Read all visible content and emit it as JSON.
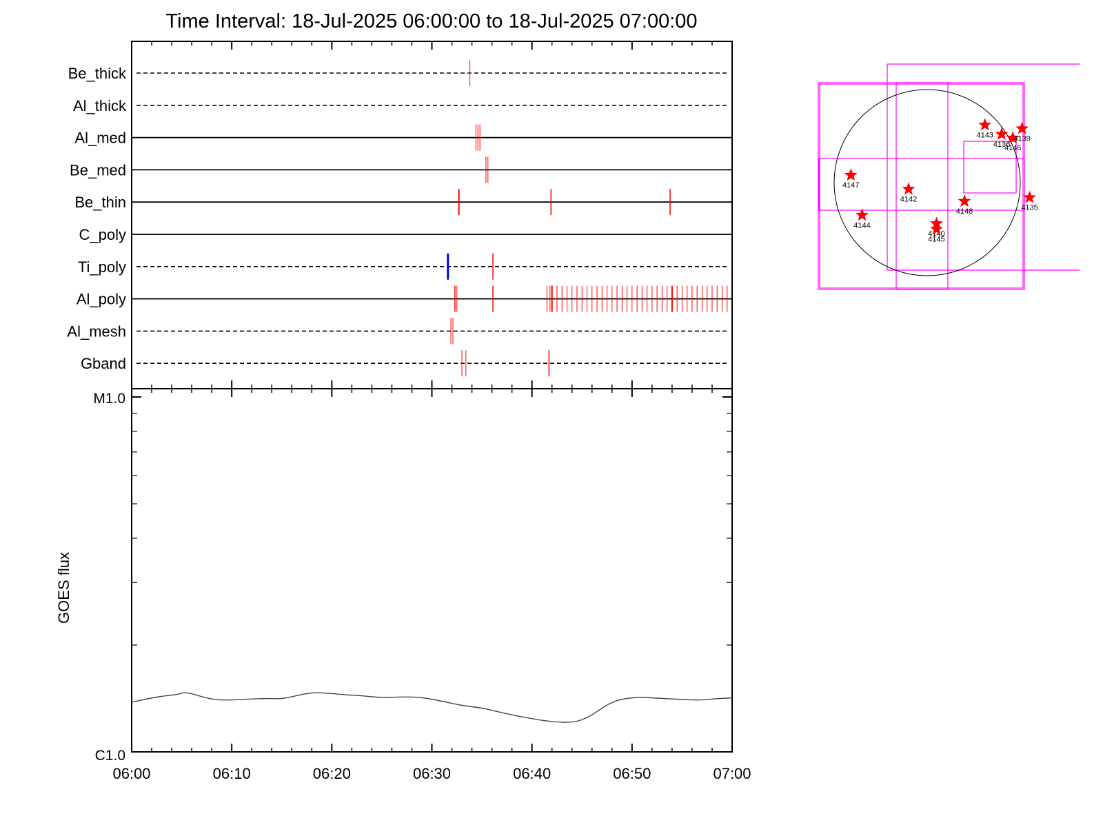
{
  "chart_data": [
    {
      "type": "timeline",
      "title": "Time Interval: 18-Jul-2025 06:00:00 to 18-Jul-2025 07:00:00",
      "x_range": [
        "06:00",
        "07:00"
      ],
      "rows": [
        {
          "label": "Be_thick",
          "line": "dashed",
          "events": [
            {
              "t": 33.8,
              "color": "#ff0000",
              "w": 1
            }
          ]
        },
        {
          "label": "Al_thick",
          "line": "dashed",
          "events": []
        },
        {
          "label": "Al_med",
          "line": "solid",
          "events": [
            {
              "t": 34.4,
              "color": "#ff0000",
              "w": 1
            },
            {
              "t": 34.6,
              "color": "#ff0000",
              "w": 1
            },
            {
              "t": 34.8,
              "color": "#ff0000",
              "w": 1
            }
          ]
        },
        {
          "label": "Be_med",
          "line": "solid",
          "events": [
            {
              "t": 35.4,
              "color": "#ff0000",
              "w": 1
            },
            {
              "t": 35.6,
              "color": "#ff0000",
              "w": 1
            }
          ]
        },
        {
          "label": "Be_thin",
          "line": "solid",
          "events": [
            {
              "t": 32.7,
              "color": "#ff0000",
              "w": 2
            },
            {
              "t": 41.9,
              "color": "#ff0000",
              "w": 1.5
            },
            {
              "t": 53.8,
              "color": "#ff0000",
              "w": 1.5
            }
          ]
        },
        {
          "label": "C_poly",
          "line": "solid",
          "events": []
        },
        {
          "label": "Ti_poly",
          "line": "dashed",
          "events": [
            {
              "t": 31.6,
              "color": "#0000ff",
              "w": 3
            },
            {
              "t": 36.1,
              "color": "#ff0000",
              "w": 1.5
            }
          ]
        },
        {
          "label": "Al_poly",
          "line": "solid",
          "events": [
            {
              "t": 32.3,
              "color": "#ff0000",
              "w": 1.5
            },
            {
              "t": 32.5,
              "color": "#ff0000",
              "w": 1
            },
            {
              "t": 36.1,
              "color": "#ff0000",
              "w": 1.5
            },
            {
              "t": 41.5,
              "color": "#ff0000",
              "w": 1
            },
            {
              "t": 41.8,
              "color": "#ff0000",
              "w": 1
            },
            {
              "t": 42.0,
              "color": "#ff0000",
              "w": 2
            },
            {
              "t": 42.5,
              "color": "#ff0000",
              "w": 1
            },
            {
              "t": 43.0,
              "color": "#ff0000",
              "w": 1
            },
            {
              "t": 43.5,
              "color": "#ff0000",
              "w": 1
            },
            {
              "t": 44.0,
              "color": "#ff0000",
              "w": 1
            },
            {
              "t": 44.5,
              "color": "#ff0000",
              "w": 1
            },
            {
              "t": 45.0,
              "color": "#ff0000",
              "w": 1
            },
            {
              "t": 45.5,
              "color": "#ff0000",
              "w": 1
            },
            {
              "t": 46.0,
              "color": "#ff0000",
              "w": 1
            },
            {
              "t": 46.5,
              "color": "#ff0000",
              "w": 1
            },
            {
              "t": 47.0,
              "color": "#ff0000",
              "w": 1
            },
            {
              "t": 47.5,
              "color": "#ff0000",
              "w": 1
            },
            {
              "t": 48.0,
              "color": "#ff0000",
              "w": 1
            },
            {
              "t": 48.5,
              "color": "#ff0000",
              "w": 1
            },
            {
              "t": 49.0,
              "color": "#ff0000",
              "w": 1
            },
            {
              "t": 49.5,
              "color": "#ff0000",
              "w": 1
            },
            {
              "t": 50.0,
              "color": "#ff0000",
              "w": 1
            },
            {
              "t": 50.5,
              "color": "#ff0000",
              "w": 1
            },
            {
              "t": 51.0,
              "color": "#ff0000",
              "w": 1
            },
            {
              "t": 51.5,
              "color": "#ff0000",
              "w": 1
            },
            {
              "t": 52.0,
              "color": "#ff0000",
              "w": 1
            },
            {
              "t": 52.5,
              "color": "#ff0000",
              "w": 1
            },
            {
              "t": 53.0,
              "color": "#ff0000",
              "w": 1
            },
            {
              "t": 53.5,
              "color": "#ff0000",
              "w": 1
            },
            {
              "t": 54.0,
              "color": "#ff0000",
              "w": 2
            },
            {
              "t": 54.5,
              "color": "#ff0000",
              "w": 1
            },
            {
              "t": 55.0,
              "color": "#ff0000",
              "w": 1
            },
            {
              "t": 55.5,
              "color": "#ff0000",
              "w": 1
            },
            {
              "t": 56.0,
              "color": "#ff0000",
              "w": 1
            },
            {
              "t": 56.5,
              "color": "#ff0000",
              "w": 1
            },
            {
              "t": 57.0,
              "color": "#ff0000",
              "w": 1
            },
            {
              "t": 57.5,
              "color": "#ff0000",
              "w": 1
            },
            {
              "t": 58.0,
              "color": "#ff0000",
              "w": 1
            },
            {
              "t": 58.5,
              "color": "#ff0000",
              "w": 1
            },
            {
              "t": 59.0,
              "color": "#ff0000",
              "w": 1
            },
            {
              "t": 59.5,
              "color": "#ff0000",
              "w": 1
            }
          ]
        },
        {
          "label": "Al_mesh",
          "line": "dashed",
          "events": [
            {
              "t": 31.9,
              "color": "#ff0000",
              "w": 1
            },
            {
              "t": 32.1,
              "color": "#ff0000",
              "w": 1
            }
          ]
        },
        {
          "label": "Gband",
          "line": "dashed",
          "events": [
            {
              "t": 33.0,
              "color": "#ff0000",
              "w": 1
            },
            {
              "t": 33.4,
              "color": "#ff0000",
              "w": 1
            },
            {
              "t": 41.7,
              "color": "#ff0000",
              "w": 1.5
            }
          ]
        }
      ]
    },
    {
      "type": "line",
      "ylabel": "GOES flux",
      "y_scale": "log",
      "ylim": [
        1e-06,
        1e-05
      ],
      "y_tick_labels": [
        {
          "value": 1e-05,
          "label": "M1.0"
        },
        {
          "value": 1e-06,
          "label": "C1.0"
        }
      ],
      "x_tick_labels": [
        "06:00",
        "06:10",
        "06:20",
        "06:30",
        "06:40",
        "06:50",
        "07:00"
      ],
      "x": [
        0,
        2,
        3.5,
        4.5,
        5.2,
        6,
        7,
        8.5,
        10,
        12,
        13.5,
        15,
        16.5,
        18,
        19.5,
        21,
        23,
        25,
        27,
        29,
        31,
        33,
        35,
        36,
        38,
        40,
        42,
        44,
        45,
        46,
        47,
        48,
        49,
        50,
        51,
        52,
        53,
        54,
        55,
        56,
        57,
        58,
        59,
        60
      ],
      "values": [
        1.38e-06,
        1.42e-06,
        1.44e-06,
        1.45e-06,
        1.47e-06,
        1.46e-06,
        1.43e-06,
        1.4e-06,
        1.4e-06,
        1.41e-06,
        1.415e-06,
        1.41e-06,
        1.44e-06,
        1.47e-06,
        1.465e-06,
        1.45e-06,
        1.44e-06,
        1.42e-06,
        1.43e-06,
        1.425e-06,
        1.39e-06,
        1.35e-06,
        1.33e-06,
        1.31e-06,
        1.27e-06,
        1.24e-06,
        1.215e-06,
        1.21e-06,
        1.23e-06,
        1.27e-06,
        1.33e-06,
        1.38e-06,
        1.41e-06,
        1.42e-06,
        1.425e-06,
        1.42e-06,
        1.415e-06,
        1.41e-06,
        1.405e-06,
        1.4e-06,
        1.4e-06,
        1.41e-06,
        1.415e-06,
        1.42e-06
      ]
    },
    {
      "type": "scatter",
      "subject": "solar disk active-region map",
      "marker": "star",
      "marker_color": "#ff0000",
      "box_color": "#ff00ff",
      "points": [
        {
          "label": "4143",
          "x": 0.62,
          "y": 0.62
        },
        {
          "label": "4136",
          "x": 0.8,
          "y": 0.52
        },
        {
          "label": "4146",
          "x": 0.92,
          "y": 0.48
        },
        {
          "label": "4139",
          "x": 1.02,
          "y": 0.58
        },
        {
          "label": "4147",
          "x": -0.82,
          "y": 0.08
        },
        {
          "label": "4142",
          "x": -0.2,
          "y": -0.07
        },
        {
          "label": "4148",
          "x": 0.4,
          "y": -0.2
        },
        {
          "label": "4135",
          "x": 1.1,
          "y": -0.16
        },
        {
          "label": "4144",
          "x": -0.7,
          "y": -0.35
        },
        {
          "label": "4140",
          "x": 0.1,
          "y": -0.44
        },
        {
          "label": "4145",
          "x": 0.1,
          "y": -0.5
        }
      ]
    }
  ]
}
